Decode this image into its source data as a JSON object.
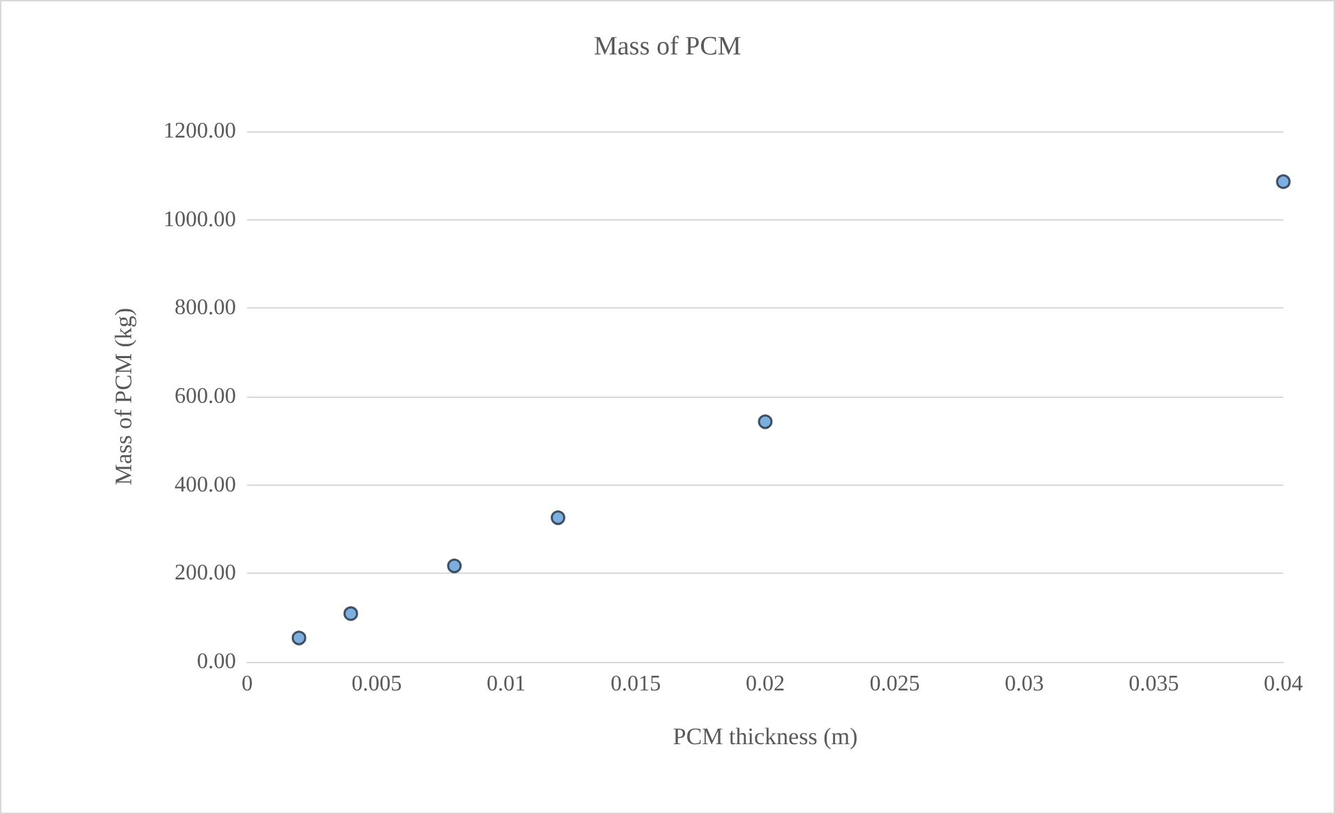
{
  "chart_data": {
    "type": "scatter",
    "title": "Mass of PCM",
    "xlabel": "PCM thickness (m)",
    "ylabel": "Mass of PCM (kg)",
    "x": [
      0.002,
      0.004,
      0.008,
      0.012,
      0.02,
      0.04
    ],
    "series": [
      {
        "color": "#5b9bd5",
        "values": [
          54,
          109,
          217,
          326,
          543,
          1086
        ]
      }
    ],
    "xlim": [
      0,
      0.04
    ],
    "xticks": [
      0,
      0.005,
      0.01,
      0.015,
      0.02,
      0.025,
      0.03,
      0.035,
      0.04
    ],
    "ylim": [
      0,
      1200
    ],
    "yticks": [
      {
        "value": 0,
        "label": "0.00"
      },
      {
        "value": 200,
        "label": "200.00"
      },
      {
        "value": 400,
        "label": "400.00"
      },
      {
        "value": 600,
        "label": "600.00"
      },
      {
        "value": 800,
        "label": "800.00"
      },
      {
        "value": 1000,
        "label": "1000.00"
      },
      {
        "value": 1200,
        "label": "1200.00"
      }
    ],
    "grid": "y",
    "marker": "circle"
  }
}
